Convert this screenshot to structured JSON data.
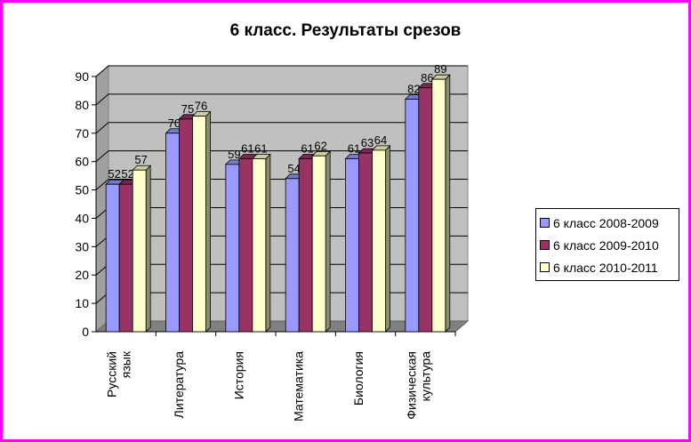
{
  "chart_data": {
    "type": "bar",
    "title": "6 класс. Результаты срезов",
    "categories": [
      "Русский язык",
      "Литература",
      "История",
      "Математика",
      "Биология",
      "Физическая культура"
    ],
    "category_lines": [
      [
        "Русский",
        "язык"
      ],
      [
        "Литература"
      ],
      [
        "История"
      ],
      [
        "Математика"
      ],
      [
        "Биология"
      ],
      [
        "Физическая",
        "культура"
      ]
    ],
    "series": [
      {
        "name": "6 класс 2008-2009",
        "color": "#9999ff",
        "values": [
          52,
          70,
          59,
          54,
          61,
          82
        ]
      },
      {
        "name": "6 класс 2009-2010",
        "color": "#993366",
        "values": [
          52,
          75,
          61,
          61,
          63,
          86
        ]
      },
      {
        "name": "6 класс 2010-2011",
        "color": "#ffffcc",
        "values": [
          57,
          76,
          61,
          62,
          64,
          89
        ]
      }
    ],
    "ylim": [
      0,
      90
    ],
    "yticks": [
      0,
      10,
      20,
      30,
      40,
      50,
      60,
      70,
      80,
      90
    ],
    "grid": true,
    "legend_position": "right",
    "three_d": true,
    "wall_color": "#c0c0c0"
  }
}
